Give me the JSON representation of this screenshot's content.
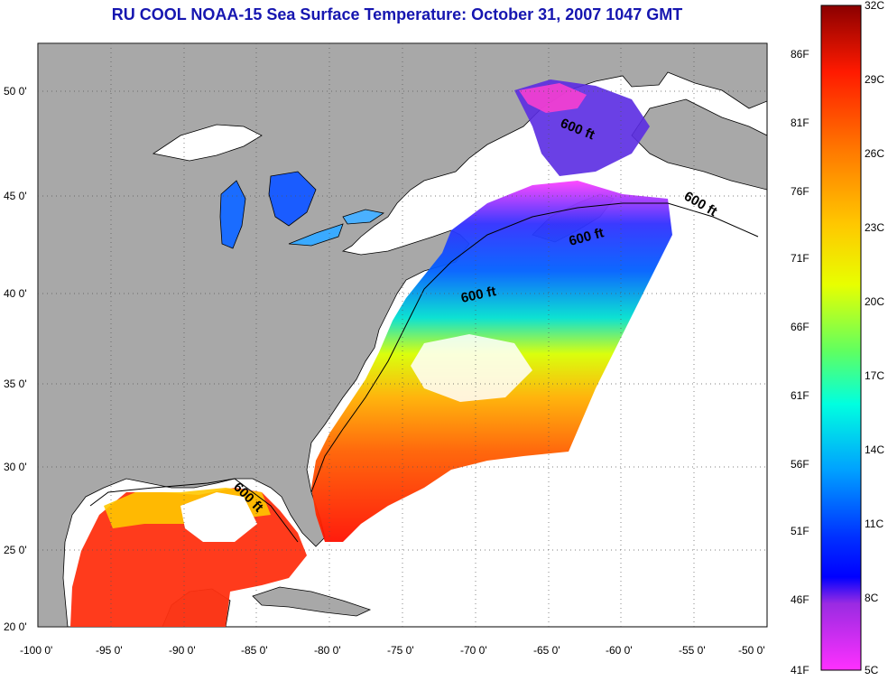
{
  "title": "RU COOL  NOAA-15  Sea Surface Temperature:  October 31, 2007 1047 GMT",
  "map": {
    "lon_range": [
      -100,
      -50
    ],
    "lat_range": [
      20,
      52
    ],
    "lon_ticks": [
      "-100 0'",
      "-95 0'",
      "-90 0'",
      "-85 0'",
      "-80 0'",
      "-75 0'",
      "-70 0'",
      "-65 0'",
      "-60 0'",
      "-55 0'",
      "-50 0'"
    ],
    "lat_ticks": [
      "20 0'",
      "25 0'",
      "30 0'",
      "35 0'",
      "40 0'",
      "45 0'",
      "50 0'"
    ],
    "contour_labels": [
      "600 ft",
      "600 ft",
      "600 ft",
      "600 ft",
      "600 ft"
    ],
    "colors": {
      "land": "#a8a8a8",
      "no_data": "#ffffff",
      "coastline": "#000000",
      "gridline": "#555555"
    }
  },
  "colorbar": {
    "celsius_labels": [
      "32C",
      "29C",
      "26C",
      "23C",
      "20C",
      "17C",
      "14C",
      "11C",
      "8C",
      "5C"
    ],
    "fahrenheit_labels": [
      "86F",
      "81F",
      "76F",
      "71F",
      "66F",
      "61F",
      "56F",
      "51F",
      "46F",
      "41F"
    ],
    "stops": [
      "#a00000",
      "#ff0000",
      "#ff6a00",
      "#ffb000",
      "#e0ff00",
      "#80ff40",
      "#00ffd0",
      "#00b0ff",
      "#0050ff",
      "#0000ff",
      "#8a2be2",
      "#ff00ff"
    ]
  }
}
